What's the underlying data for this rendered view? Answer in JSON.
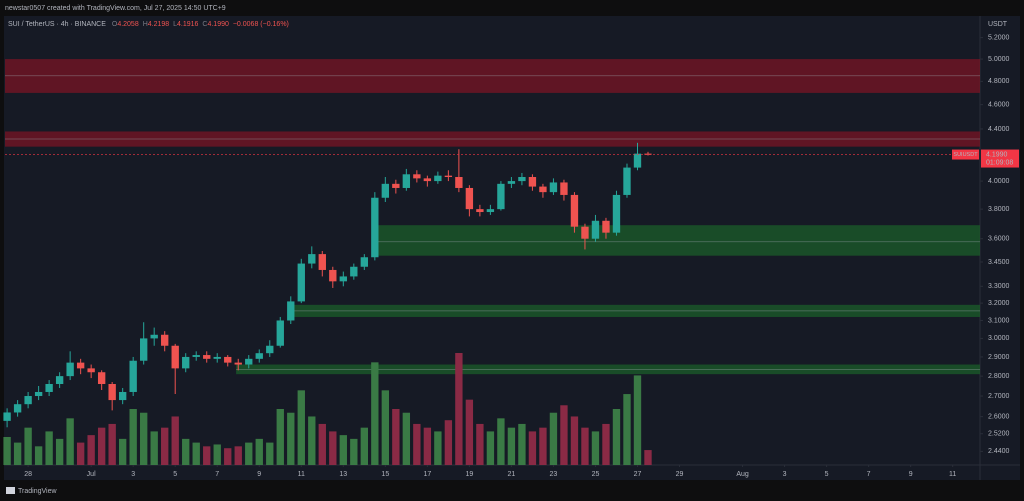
{
  "header": {
    "credit": "newstar0507 created with TradingView.com, Jul 27, 2025 14:50 UTC+9"
  },
  "chart_data": {
    "type": "candlestick",
    "title": "SUI / TetherUS · 4h · BINANCE",
    "legend_ohlc": [
      {
        "key": "O",
        "text": "4.2058"
      },
      {
        "key": "H",
        "text": "4.2198"
      },
      {
        "key": "L",
        "text": "4.1916"
      },
      {
        "key": "C",
        "text": "4.1990"
      }
    ],
    "change": "−0.0068 (−0.16%)",
    "y_unit": "USDT",
    "x": [
      -1,
      -0.5,
      0,
      0.5,
      1,
      1.5,
      2,
      2.5,
      3,
      3.5,
      4,
      4.5,
      5,
      5.5,
      6,
      6.5,
      7,
      7.5,
      8,
      8.5,
      9,
      9.5,
      10,
      10.5,
      11,
      11.5,
      12,
      12.5,
      13,
      13.5,
      14,
      14.5,
      15,
      15.5,
      16,
      16.5,
      17,
      17.5,
      18,
      18.5,
      19,
      19.5,
      20,
      20.5,
      21,
      21.5,
      22,
      22.5,
      23,
      23.5,
      24,
      24.5,
      25,
      25.5,
      26,
      26.5,
      27,
      27.5,
      28,
      28.5,
      29,
      29.5
    ],
    "open": [
      2.58,
      2.62,
      2.66,
      2.7,
      2.72,
      2.76,
      2.8,
      2.87,
      2.84,
      2.82,
      2.76,
      2.68,
      2.72,
      2.88,
      3.0,
      3.02,
      2.96,
      2.84,
      2.9,
      2.91,
      2.89,
      2.9,
      2.87,
      2.86,
      2.89,
      2.92,
      2.96,
      3.1,
      3.21,
      3.44,
      3.5,
      3.4,
      3.33,
      3.36,
      3.42,
      3.48,
      3.88,
      3.98,
      3.95,
      4.05,
      4.02,
      4.0,
      4.04,
      4.03,
      3.95,
      3.8,
      3.78,
      3.8,
      3.98,
      4.0,
      4.03,
      3.96,
      3.92,
      3.99,
      3.9,
      3.68,
      3.6,
      3.72,
      3.64,
      3.9,
      4.1,
      4.2058
    ],
    "high": [
      2.64,
      2.68,
      2.72,
      2.75,
      2.78,
      2.82,
      2.93,
      2.89,
      2.86,
      2.83,
      2.77,
      2.74,
      2.9,
      3.09,
      3.06,
      3.04,
      2.97,
      2.92,
      2.93,
      2.93,
      2.92,
      2.91,
      2.89,
      2.91,
      2.94,
      2.99,
      3.12,
      3.24,
      3.47,
      3.55,
      3.52,
      3.42,
      3.39,
      3.44,
      3.5,
      3.92,
      4.03,
      4.01,
      4.09,
      4.08,
      4.04,
      4.07,
      4.08,
      4.24,
      3.97,
      3.83,
      3.83,
      4.0,
      4.03,
      4.06,
      4.05,
      3.98,
      4.02,
      4.01,
      3.92,
      3.7,
      3.76,
      3.74,
      3.93,
      4.13,
      4.29,
      4.2198
    ],
    "low": [
      2.55,
      2.6,
      2.64,
      2.68,
      2.7,
      2.74,
      2.78,
      2.81,
      2.79,
      2.73,
      2.63,
      2.66,
      2.7,
      2.86,
      2.96,
      2.93,
      2.71,
      2.82,
      2.88,
      2.87,
      2.87,
      2.85,
      2.83,
      2.84,
      2.87,
      2.9,
      2.95,
      3.08,
      3.2,
      3.41,
      3.36,
      3.29,
      3.3,
      3.34,
      3.4,
      3.46,
      3.85,
      3.91,
      3.93,
      3.99,
      3.96,
      3.98,
      4.0,
      3.92,
      3.75,
      3.75,
      3.76,
      3.79,
      3.95,
      3.97,
      3.93,
      3.88,
      3.9,
      3.86,
      3.64,
      3.53,
      3.58,
      3.6,
      3.62,
      3.88,
      4.08,
      4.1916
    ],
    "close": [
      2.62,
      2.66,
      2.7,
      2.72,
      2.76,
      2.8,
      2.87,
      2.84,
      2.82,
      2.76,
      2.68,
      2.72,
      2.88,
      3.0,
      3.02,
      2.96,
      2.84,
      2.9,
      2.91,
      2.89,
      2.9,
      2.87,
      2.86,
      2.89,
      2.92,
      2.96,
      3.1,
      3.21,
      3.44,
      3.5,
      3.4,
      3.33,
      3.36,
      3.42,
      3.48,
      3.88,
      3.98,
      3.95,
      4.05,
      4.02,
      4.0,
      4.04,
      4.03,
      3.95,
      3.8,
      3.78,
      3.8,
      3.98,
      4.0,
      4.03,
      3.96,
      3.92,
      3.99,
      3.9,
      3.68,
      3.6,
      3.72,
      3.64,
      3.9,
      4.1,
      4.2058,
      4.199
    ],
    "volume": [
      15,
      12,
      20,
      10,
      18,
      14,
      25,
      12,
      16,
      20,
      22,
      14,
      30,
      28,
      18,
      20,
      26,
      14,
      12,
      10,
      11,
      9,
      10,
      12,
      14,
      12,
      30,
      28,
      40,
      26,
      22,
      18,
      16,
      14,
      20,
      55,
      40,
      30,
      28,
      22,
      20,
      18,
      24,
      60,
      35,
      22,
      18,
      25,
      20,
      22,
      18,
      20,
      28,
      32,
      26,
      20,
      18,
      22,
      30,
      38,
      48,
      8
    ],
    "up_color": "#26a69a",
    "down_color": "#ef5350",
    "volume_up_color": "#3a7a45",
    "volume_down_color": "#8a2a45",
    "xlim": [
      -1.1,
      45.3
    ],
    "xticks": [
      {
        "value": 0,
        "label": "28"
      },
      {
        "value": 3,
        "label": "Jul"
      },
      {
        "value": 5,
        "label": "3"
      },
      {
        "value": 7,
        "label": "5"
      },
      {
        "value": 9,
        "label": "7"
      },
      {
        "value": 11,
        "label": "9"
      },
      {
        "value": 13,
        "label": "11"
      },
      {
        "value": 15,
        "label": "13"
      },
      {
        "value": 17,
        "label": "15"
      },
      {
        "value": 19,
        "label": "17"
      },
      {
        "value": 21,
        "label": "19"
      },
      {
        "value": 23,
        "label": "21"
      },
      {
        "value": 25,
        "label": "23"
      },
      {
        "value": 27,
        "label": "25"
      },
      {
        "value": 29,
        "label": "27"
      },
      {
        "value": 31,
        "label": "29"
      },
      {
        "value": 34,
        "label": "Aug"
      },
      {
        "value": 36,
        "label": "3"
      },
      {
        "value": 38,
        "label": "5"
      },
      {
        "value": 40,
        "label": "7"
      },
      {
        "value": 42,
        "label": "9"
      },
      {
        "value": 44,
        "label": "11"
      }
    ],
    "ylim": [
      2.38,
      5.39
    ],
    "ylog": true,
    "yticks": [
      {
        "value": 5.2,
        "label": "5.2000"
      },
      {
        "value": 5.0,
        "label": "5.0000"
      },
      {
        "value": 4.8,
        "label": "4.8000"
      },
      {
        "value": 4.6,
        "label": "4.6000"
      },
      {
        "value": 4.4,
        "label": "4.4000"
      },
      {
        "value": 4.0,
        "label": "4.0000"
      },
      {
        "value": 3.8,
        "label": "3.8000"
      },
      {
        "value": 3.6,
        "label": "3.6000"
      },
      {
        "value": 3.45,
        "label": "3.4500"
      },
      {
        "value": 3.3,
        "label": "3.3000"
      },
      {
        "value": 3.2,
        "label": "3.2000"
      },
      {
        "value": 3.1,
        "label": "3.1000"
      },
      {
        "value": 3.0,
        "label": "3.0000"
      },
      {
        "value": 2.9,
        "label": "2.9000"
      },
      {
        "value": 2.8,
        "label": "2.8000"
      },
      {
        "value": 2.7,
        "label": "2.7000"
      },
      {
        "value": 2.6,
        "label": "2.6000"
      },
      {
        "value": 2.52,
        "label": "2.5200"
      },
      {
        "value": 2.44,
        "label": "2.4400"
      }
    ],
    "grid": false,
    "zones": [
      {
        "color": "#7a1424",
        "low": 4.7,
        "high": 5.0,
        "mid": 4.85
      },
      {
        "color": "#7a1424",
        "low": 4.26,
        "high": 4.38,
        "mid": 4.32
      },
      {
        "color": "#1b5e2a",
        "low": 3.49,
        "high": 3.69,
        "mid": 3.58,
        "start": 16.4
      },
      {
        "color": "#1b5e2a",
        "low": 3.12,
        "high": 3.19,
        "mid": 3.155,
        "start": 12.4
      },
      {
        "color": "#1b5e2a",
        "low": 2.81,
        "high": 2.86,
        "mid": 2.835,
        "start": 9.9
      }
    ],
    "last_price": {
      "name": "SUIUSDT",
      "value": 4.199,
      "label": "4.1990",
      "countdown": "01:09:08",
      "color": "#f23645"
    }
  },
  "footer": {
    "brand": "TradingView"
  }
}
